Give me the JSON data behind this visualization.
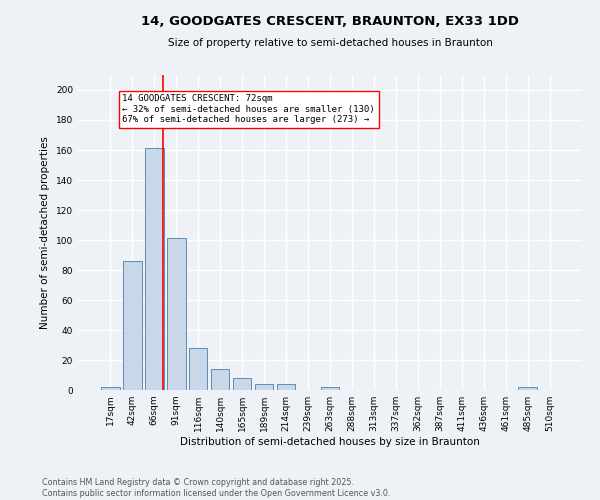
{
  "title_line1": "14, GOODGATES CRESCENT, BRAUNTON, EX33 1DD",
  "title_line2": "Size of property relative to semi-detached houses in Braunton",
  "xlabel": "Distribution of semi-detached houses by size in Braunton",
  "ylabel": "Number of semi-detached properties",
  "bar_color": "#c8d8e8",
  "bar_edge_color": "#5b8db8",
  "categories": [
    "17sqm",
    "42sqm",
    "66sqm",
    "91sqm",
    "116sqm",
    "140sqm",
    "165sqm",
    "189sqm",
    "214sqm",
    "239sqm",
    "263sqm",
    "288sqm",
    "313sqm",
    "337sqm",
    "362sqm",
    "387sqm",
    "411sqm",
    "436sqm",
    "461sqm",
    "485sqm",
    "510sqm"
  ],
  "values": [
    2,
    86,
    161,
    101,
    28,
    14,
    8,
    4,
    4,
    0,
    2,
    0,
    0,
    0,
    0,
    0,
    0,
    0,
    0,
    2,
    0
  ],
  "red_line_index": 2,
  "annotation_text": "14 GOODGATES CRESCENT: 72sqm\n← 32% of semi-detached houses are smaller (130)\n67% of semi-detached houses are larger (273) →",
  "ylim": [
    0,
    210
  ],
  "yticks": [
    0,
    20,
    40,
    60,
    80,
    100,
    120,
    140,
    160,
    180,
    200
  ],
  "footer_line1": "Contains HM Land Registry data © Crown copyright and database right 2025.",
  "footer_line2": "Contains public sector information licensed under the Open Government Licence v3.0.",
  "background_color": "#eef2f7",
  "grid_color": "#ffffff"
}
